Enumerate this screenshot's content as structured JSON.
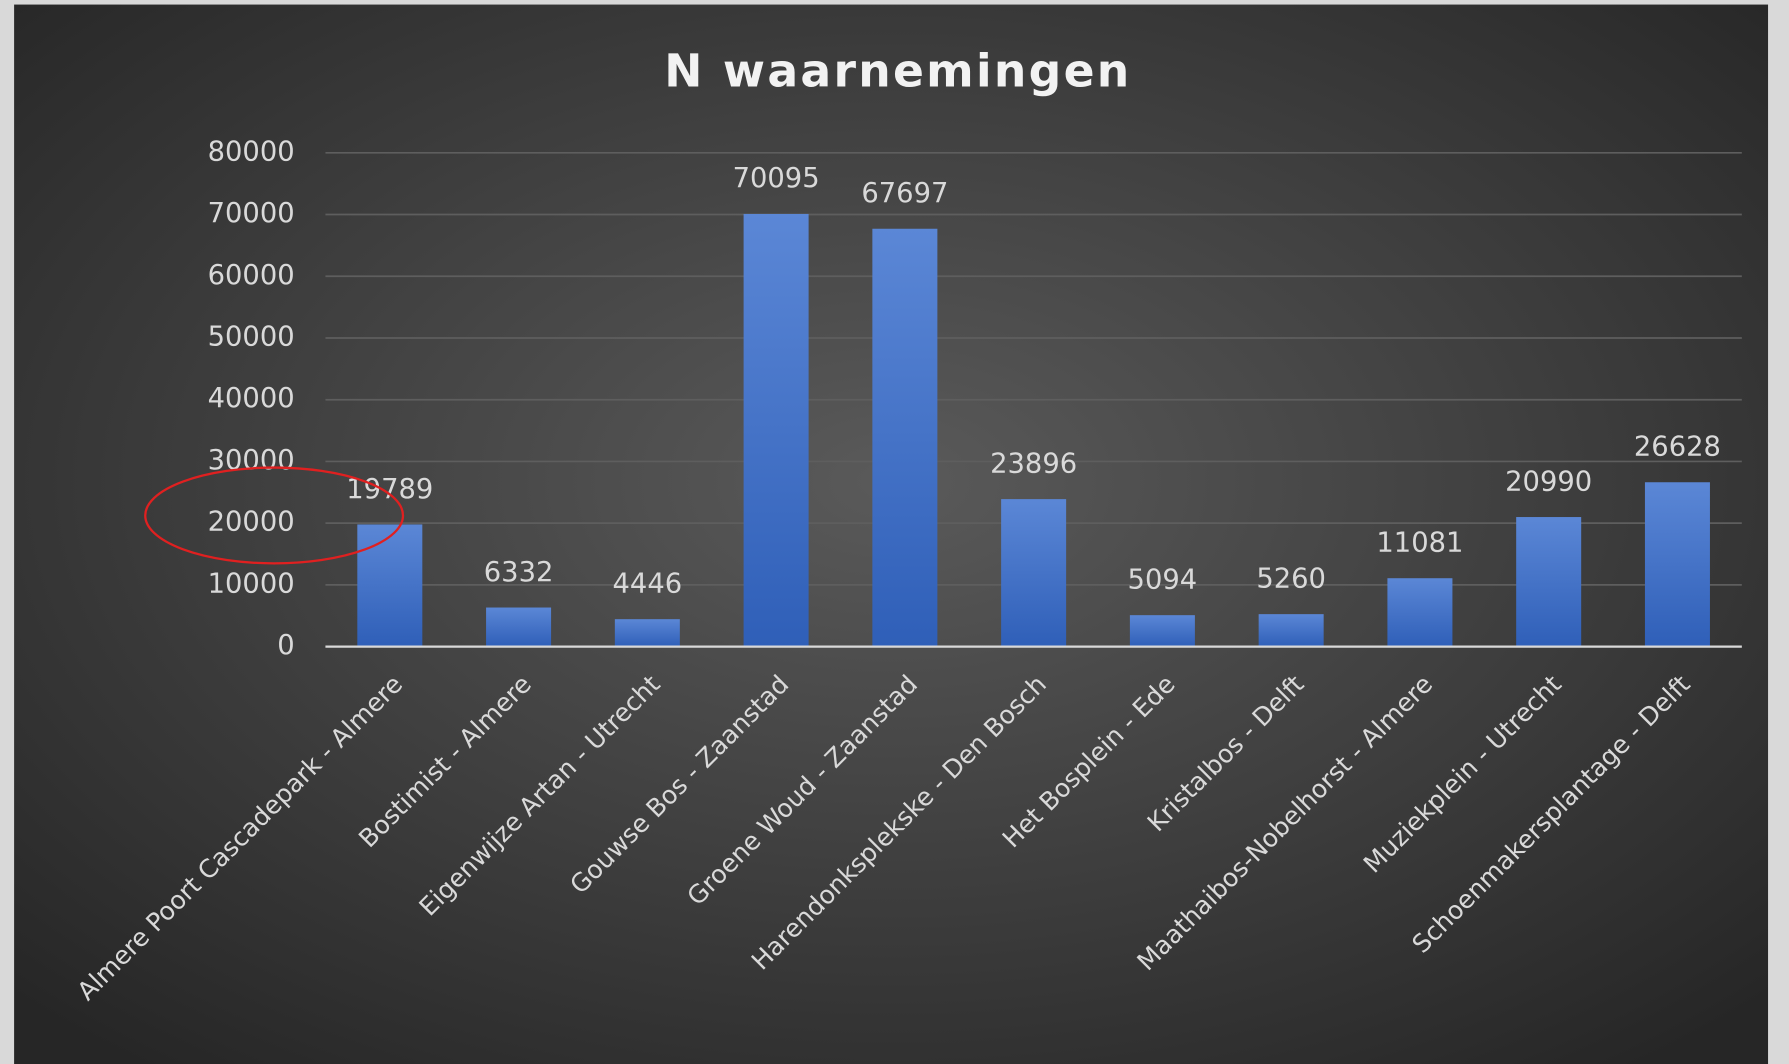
{
  "chart_data": {
    "type": "bar",
    "title": "N waarnemingen",
    "categories": [
      "Almere Poort Cascadepark - Almere",
      "Bostimist - Almere",
      "Eigenwijze Artan - Utrecht",
      "Gouwse Bos - Zaanstad",
      "Groene Woud - Zaanstad",
      "Harendonksplekske - Den Bosch",
      "Het Bosplein - Ede",
      "Kristalbos - Delft",
      "Maathaibos-Nobelhorst - Almere",
      "Muziekplein - Utrecht",
      "Schoenmakersplantage - Delft"
    ],
    "values": [
      19789,
      6332,
      4446,
      70095,
      67697,
      23896,
      5094,
      5260,
      11081,
      20990,
      26628
    ],
    "color": "#4472c4",
    "ylim": [
      0,
      80000
    ],
    "yticks": [
      0,
      10000,
      20000,
      30000,
      40000,
      50000,
      60000,
      70000,
      80000
    ],
    "grid": true
  }
}
